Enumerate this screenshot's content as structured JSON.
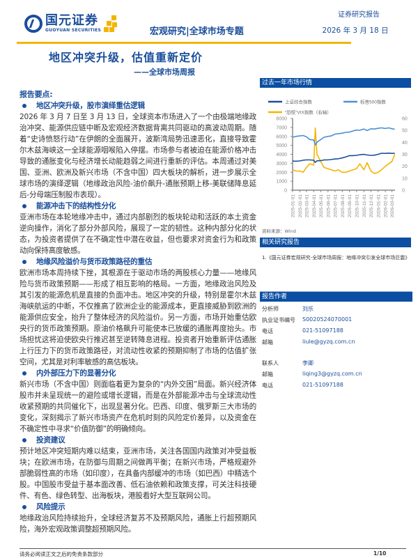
{
  "header": {
    "company_cn": "国元证券",
    "company_en": "GUOYUAN SECURITIES",
    "topic": "宏观研究|全球市场专题",
    "report_type": "证券研究报告",
    "date": "2026 年 3 月 18 日"
  },
  "title": "地区冲突升级，估值重新定价",
  "subtitle": "——全球市场周报",
  "key_points_label": "报告要点:",
  "sections": [
    {
      "heading": "地区冲突升级，股市演绎重估逻辑",
      "body": "2026 年 3 月 7 日至 3 月 13 日，全球资本市场进入了一个由极端地缘政治冲突、能源供应链中断及宏观经济数据背离共同驱动的高波动周期。随着“史诗愤怒行动”在伊朗的全面展开，波斯湾局势迅速恶化，直接导致霍尔木兹海峡这一全球能源咽喉陷入停摆。市场参与者被迫在能源价格冲击导致的通胀变化与经济增长动能趋弱之间进行重新的评估。本周通过对美国、亚洲、欧洲及新兴市场（不含中国）四大板块的解析，进一步展示全球市场的演绎逻辑（地缘政治风险-油价飙升-通胀预期上移-美联储降息延后-分母端压制股市表现）。"
    },
    {
      "heading": "能源冲击下的结构性分化",
      "body": "亚洲市场在本轮地缘冲击中，通过内部剧烈的板块轮动和活跃的本土资金逆向操作，消化了部分外部风险，展现了一定的韧性。这种内部分化的状态，为投资者提供了在不确定性中潜在收益，但也要求对资金行为和政策动向保持高度敏感。"
    },
    {
      "heading": "地缘风险溢价与货币政策路径的重估",
      "body": "欧洲市场本周持续下挫，其根源在于驱动市场的两股核心力量——地缘风险与货币政策预期——形成了相互影响的格局。一方面，地缘政治风险及其引发的能源危机是直接的负面冲击。地区冲突的升级，特别是霍尔木兹海峡航运的中断，不仅推高了欧洲企业的能源成本，更直接威胁到欧洲的能源供应安全，抬升了整体经济的风险溢价。另一方面，市场开始重估欧央行的货币政策预期。原油价格飙升可能使本已放缓的通胀再度抬头。市场担忧这将迫使欧央行推迟甚至逆转降息进程。投资者开始重新评估通胀上行压力下的货币政策路径，对流动性收紧的预期抑制了市场的估值扩张空间，尤其是对利率敏感的高估板块。"
    },
    {
      "heading": "内外部压力下的显著分化",
      "body": "新兴市场（不含中国）则面临着更为复杂的“内外交困”局面。新兴经济体股市并未呈现统一的避险或增长逻辑，而是在外部能源冲击与全球流动性收紧预期的共同催化下，出现显著分化。巴西、印度、俄罗斯三大市场的变化，深刻揭示了新兴市场资产在危机时刻的风险定价差异，以及资金在不确定性中寻求“价值防御”的明确倾向。"
    },
    {
      "heading": "投资建议",
      "body": "预计地区冲突短期内难以结束，亚洲市场，关注各国国内政策对冲受益板块；在欧洲市场，在防御与周期之间做再平衡；在新兴市场，严格规避外部脆弱性高的市场（如印度），在具备内部缓冲的市场（如巴西）中精选个股。中国股市受益于基本面改善、低石油依赖和政策支撑，可关注科技硬件、有色、绿色转型、出海板块，港股看好大型互联网公司。"
    },
    {
      "heading": "风险提示",
      "body": "地缘政治风险持续抬升，全球经济复苏不及预期风险，通胀上行超预期风险，海外宏观政策调整超预期风险。"
    }
  ],
  "chart_panel": {
    "title": "过去一年市场行情",
    "source": "资料来源：Wind"
  },
  "chart_data": {
    "type": "line",
    "x": [
      "2025-01-01",
      "2025-01-15",
      "2025-02-01",
      "2025-02-15",
      "2025-03-01",
      "2025-03-15",
      "2025-04-01",
      "2025-04-08",
      "2025-04-15",
      "2025-05-01",
      "2025-05-15",
      "2025-06-01",
      "2025-06-15",
      "2025-07-01",
      "2025-07-15",
      "2025-08-01",
      "2025-08-15",
      "2025-09-01",
      "2025-09-15",
      "2025-10-01",
      "2025-10-15",
      "2025-11-01",
      "2025-11-15",
      "2025-12-01",
      "2025-12-15",
      "2026-01-01",
      "2026-01-15",
      "2026-02-01",
      "2026-02-15",
      "2026-03-01",
      "2026-03-13"
    ],
    "x_ticks": [
      "2025-01-01",
      "2025-02-01",
      "2025-03-01",
      "2025-04-01",
      "2025-05-01",
      "2025-06-01",
      "2025-07-01",
      "2025-08-01",
      "2025-09-01",
      "2025-10-01",
      "2025-11-01",
      "2025-12-01",
      "2026-01-01",
      "2026-02-01",
      "2026-03-01"
    ],
    "series": [
      {
        "name": "上证综合指数",
        "axis": "left",
        "color": "#1a4e9a",
        "values": [
          3250,
          3230,
          3260,
          3340,
          3380,
          3380,
          3340,
          3100,
          3280,
          3290,
          3370,
          3380,
          3420,
          3480,
          3500,
          3600,
          3700,
          3850,
          3850,
          3880,
          3950,
          3990,
          3920,
          3880,
          3900,
          4000,
          4120,
          4100,
          4130,
          4100,
          4110
        ]
      },
      {
        "name": "标普500指数",
        "axis": "left",
        "color": "#4a90d9",
        "values": [
          5900,
          6000,
          6050,
          6100,
          5950,
          5650,
          5600,
          5050,
          5350,
          5650,
          5900,
          6000,
          6050,
          6250,
          6300,
          6350,
          6450,
          6480,
          6600,
          6700,
          6680,
          6820,
          6650,
          6850,
          6820,
          6900,
          6950,
          6880,
          6950,
          6850,
          6800
        ]
      },
      {
        "name": "“恐慌”VIX指数（右轴）",
        "axis": "right",
        "color": "#f4b400",
        "values": [
          17,
          16,
          16,
          15,
          19,
          22,
          21,
          52,
          30,
          24,
          19,
          18,
          17,
          16,
          17,
          15,
          15,
          16,
          17,
          18,
          22,
          17,
          23,
          16,
          14,
          15,
          17,
          20,
          22,
          24,
          30
        ]
      }
    ],
    "y_left": {
      "range": [
        0,
        8000
      ],
      "ticks": [
        0,
        1000,
        2000,
        3000,
        4000,
        5000,
        6000,
        7000,
        8000
      ]
    },
    "y_right": {
      "range": [
        0,
        60
      ],
      "ticks": [
        0,
        10,
        20,
        30,
        40,
        50,
        60
      ]
    },
    "grid": false,
    "legend": "top"
  },
  "related": {
    "title": "相关研究报告",
    "items": [
      "1.《国元证券宏观研究-全球市场周报：地缘冲突引发全球市场巨震》"
    ]
  },
  "authors": {
    "title": "报告作者",
    "rows": [
      {
        "k": "分析师",
        "v": "刘乐"
      },
      {
        "k": "执业证书编号",
        "v": "S0020524070001"
      },
      {
        "k": "电话",
        "v": "021-51097188"
      },
      {
        "k": "邮箱",
        "v": "liule@gyzq.com.cn"
      }
    ],
    "contact_rows": [
      {
        "k": "联系人",
        "v": "李卿"
      },
      {
        "k": "邮箱",
        "v": "liqing3@gyzq.com.cn"
      },
      {
        "k": "电话",
        "v": "021-51097188"
      }
    ]
  },
  "footer": {
    "disclaimer": "请务必阅读正文之后的免责条款部分",
    "page": "1/10"
  }
}
